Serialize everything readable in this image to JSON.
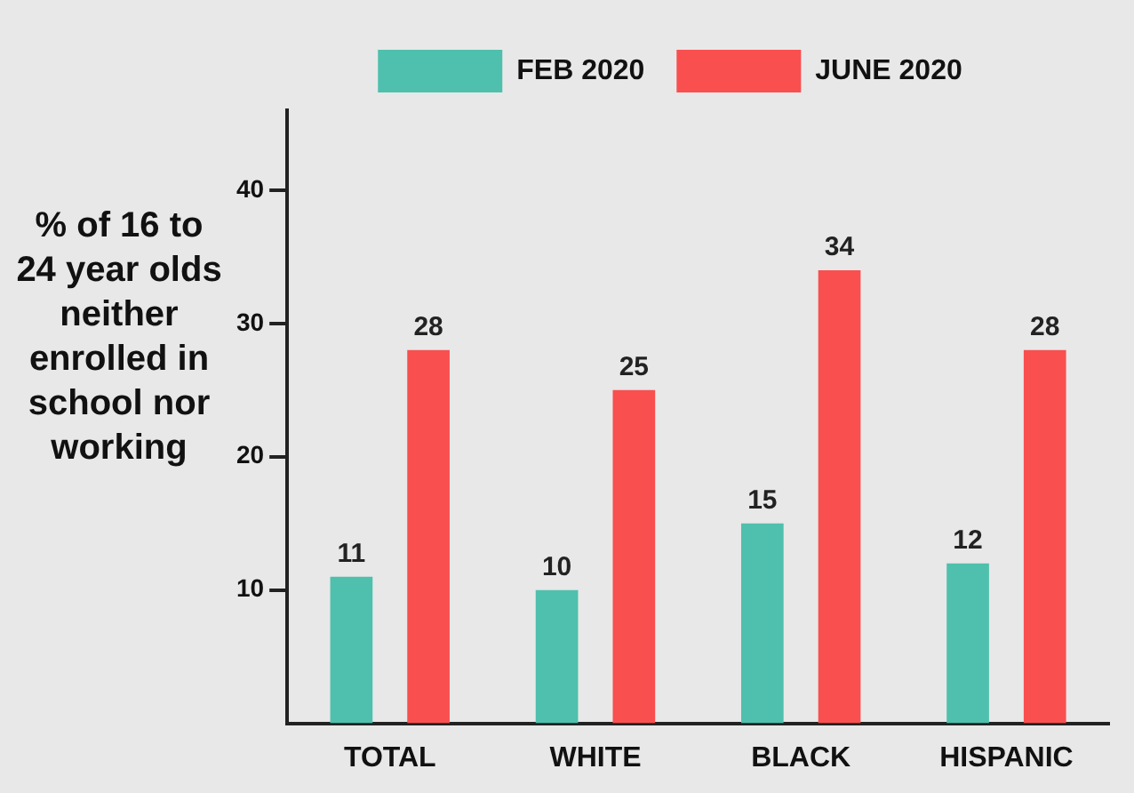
{
  "chart_data": {
    "type": "bar",
    "ylabel": "% of 16 to 24 year olds neither enrolled in school nor working",
    "categories": [
      "TOTAL",
      "WHITE",
      "BLACK",
      "HISPANIC"
    ],
    "series": [
      {
        "name": "FEB 2020",
        "color": "#4fc0ad",
        "values": [
          11,
          10,
          15,
          12
        ]
      },
      {
        "name": "JUNE 2020",
        "color": "#f94f4f",
        "values": [
          28,
          25,
          34,
          28
        ]
      }
    ],
    "ylim": [
      0,
      46
    ],
    "yticks": [
      10,
      20,
      30,
      40
    ],
    "grid": false,
    "legend": "top",
    "data_labels": true
  }
}
